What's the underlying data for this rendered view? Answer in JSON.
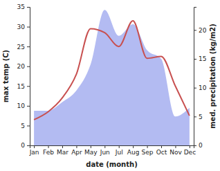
{
  "chart_data": {
    "type": "line",
    "x_label": "date (month)",
    "y_label": "max temp (C)",
    "y2_label": "med. precipitation (kg/m2)",
    "categories": [
      "Jan",
      "Feb",
      "Mar",
      "Apr",
      "May",
      "Jun",
      "Jul",
      "Aug",
      "Sep",
      "Oct",
      "Nov",
      "Dec"
    ],
    "series": [
      {
        "type": "area",
        "axis": "y2",
        "color": "#b3bbf2",
        "values": [
          6,
          6,
          7.5,
          9.5,
          14,
          23.5,
          19,
          21,
          16.5,
          15,
          5,
          6.5
        ]
      },
      {
        "type": "line",
        "color": "#c85050",
        "values": [
          6.5,
          8.5,
          12,
          18,
          29.5,
          28.5,
          25,
          31.5,
          22,
          22.5,
          15,
          7.5
        ]
      }
    ],
    "ylim": [
      0,
      35
    ],
    "yticks": [
      0,
      5,
      10,
      15,
      20,
      25,
      30,
      35
    ],
    "y2lim": [
      0,
      24
    ],
    "y2ticks": [
      0,
      5,
      10,
      15,
      20
    ]
  }
}
